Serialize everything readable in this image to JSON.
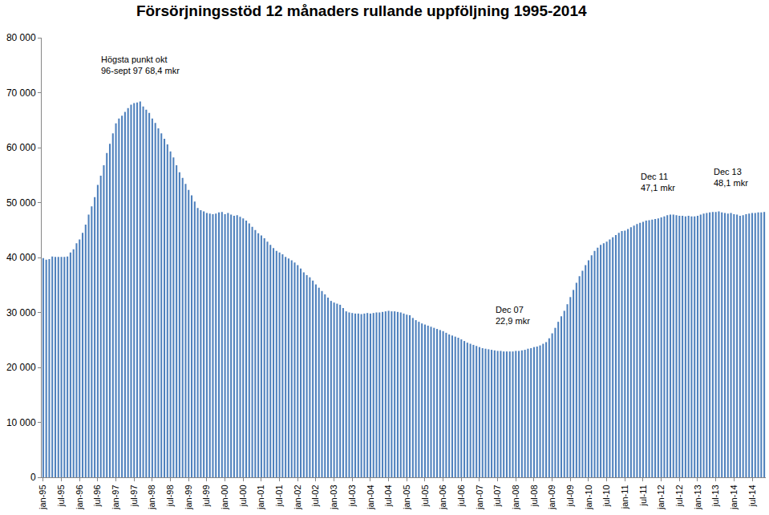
{
  "chart_data": {
    "type": "bar",
    "title": "Försörjningsstöd 12 månaders rullande uppföljning 1995-2014",
    "color": "#4f81bd",
    "grid": false,
    "categories": [
      "jan-95",
      null,
      null,
      null,
      null,
      null,
      "jul-95",
      null,
      null,
      null,
      null,
      null,
      "jan-96",
      null,
      null,
      null,
      null,
      null,
      "jul-96",
      null,
      null,
      null,
      null,
      null,
      "jan-97",
      null,
      null,
      null,
      null,
      null,
      "jul-97",
      null,
      null,
      null,
      null,
      null,
      "jan-98",
      null,
      null,
      null,
      null,
      null,
      "jul-98",
      null,
      null,
      null,
      null,
      null,
      "jan-99",
      null,
      null,
      null,
      null,
      null,
      "jul-99",
      null,
      null,
      null,
      null,
      null,
      "jan-00",
      null,
      null,
      null,
      null,
      null,
      "jul-00",
      null,
      null,
      null,
      null,
      null,
      "jan-01",
      null,
      null,
      null,
      null,
      null,
      "jul-01",
      null,
      null,
      null,
      null,
      null,
      "jan-02",
      null,
      null,
      null,
      null,
      null,
      "jul-02",
      null,
      null,
      null,
      null,
      null,
      "jan-03",
      null,
      null,
      null,
      null,
      null,
      "jul-03",
      null,
      null,
      null,
      null,
      null,
      "jan-04",
      null,
      null,
      null,
      null,
      null,
      "jul-04",
      null,
      null,
      null,
      null,
      null,
      "jan-05",
      null,
      null,
      null,
      null,
      null,
      "jul-05",
      null,
      null,
      null,
      null,
      null,
      "jan-06",
      null,
      null,
      null,
      null,
      null,
      "jul-06",
      null,
      null,
      null,
      null,
      null,
      "jan-07",
      null,
      null,
      null,
      null,
      null,
      "jul-07",
      null,
      null,
      null,
      null,
      null,
      "jan-08",
      null,
      null,
      null,
      null,
      null,
      "jul-08",
      null,
      null,
      null,
      null,
      null,
      "jan-09",
      null,
      null,
      null,
      null,
      null,
      "jul-09",
      null,
      null,
      null,
      null,
      null,
      "jan-10",
      null,
      null,
      null,
      null,
      null,
      "jul-10",
      null,
      null,
      null,
      null,
      null,
      "jan-11",
      null,
      null,
      null,
      null,
      null,
      "jul-11",
      null,
      null,
      null,
      null,
      null,
      "jan-12",
      null,
      null,
      null,
      null,
      null,
      "jul-12",
      null,
      null,
      null,
      null,
      null,
      "jan-13",
      null,
      null,
      null,
      null,
      null,
      "jul-13",
      null,
      null,
      null,
      null,
      null,
      "jan-14",
      null,
      null,
      null,
      null,
      null,
      "jul-14",
      null,
      null,
      null,
      null
    ],
    "values": [
      39900,
      39600,
      39700,
      40200,
      40100,
      40100,
      40100,
      40100,
      40200,
      40900,
      41500,
      42600,
      43300,
      44500,
      46000,
      47800,
      49300,
      51000,
      53200,
      54900,
      56800,
      59000,
      60700,
      62600,
      64400,
      65300,
      65800,
      66500,
      67200,
      67800,
      68100,
      68200,
      68400,
      67500,
      66900,
      66300,
      65300,
      64500,
      63500,
      62600,
      61600,
      60600,
      59300,
      58200,
      56800,
      55500,
      54500,
      53400,
      52300,
      51300,
      50200,
      49000,
      48600,
      48400,
      48100,
      48000,
      47900,
      48000,
      48200,
      48300,
      47900,
      48100,
      47800,
      47600,
      47700,
      47400,
      47100,
      46700,
      46200,
      45600,
      45000,
      44400,
      44000,
      43500,
      42900,
      42300,
      41700,
      41200,
      40900,
      40600,
      40100,
      39800,
      39500,
      39100,
      38600,
      38000,
      37300,
      36800,
      36400,
      35800,
      35100,
      34500,
      33900,
      33300,
      32700,
      32100,
      31800,
      31600,
      31400,
      30800,
      30200,
      30000,
      29900,
      29800,
      29800,
      29700,
      29800,
      29900,
      29800,
      29900,
      30000,
      30000,
      30100,
      30200,
      30300,
      30200,
      30200,
      30100,
      30000,
      29800,
      29600,
      29500,
      29000,
      28600,
      28300,
      28000,
      27800,
      27600,
      27400,
      27200,
      27000,
      26800,
      26600,
      26300,
      26000,
      25800,
      25600,
      25400,
      25100,
      24800,
      24500,
      24300,
      24100,
      23900,
      23700,
      23500,
      23400,
      23300,
      23200,
      23100,
      23000,
      23000,
      22900,
      22900,
      22900,
      22900,
      23000,
      23000,
      23100,
      23200,
      23400,
      23500,
      23700,
      23800,
      24000,
      24300,
      24600,
      25300,
      26200,
      27200,
      28300,
      29300,
      30300,
      31500,
      32800,
      34100,
      35400,
      36600,
      37600,
      38600,
      39500,
      40400,
      41200,
      41800,
      42300,
      42600,
      42900,
      43300,
      43700,
      44100,
      44500,
      44800,
      44900,
      45200,
      45500,
      45800,
      46100,
      46300,
      46500,
      46700,
      46800,
      46900,
      47000,
      47100,
      47300,
      47500,
      47700,
      47800,
      47800,
      47700,
      47600,
      47600,
      47500,
      47600,
      47500,
      47500,
      47600,
      47800,
      48000,
      48100,
      48200,
      48300,
      48300,
      48400,
      48200,
      48100,
      48000,
      48100,
      47900,
      47800,
      47600,
      47700,
      47900,
      48000,
      48100,
      48100,
      48200,
      48200,
      48300
    ],
    "ylim": [
      0,
      80000
    ],
    "yticks": [
      0,
      {
        "value": 10000,
        "label": "10 000"
      },
      {
        "value": 20000,
        "label": "20 000"
      },
      {
        "value": 30000,
        "label": "30 000"
      },
      {
        "value": 40000,
        "label": "40 000"
      },
      {
        "value": 50000,
        "label": "50 000"
      },
      {
        "value": 60000,
        "label": "60 000"
      },
      {
        "value": 70000,
        "label": "70 000"
      },
      {
        "value": 80000,
        "label": "80 000"
      }
    ],
    "annotations": [
      {
        "index": 32,
        "text": [
          "Högsta punkt okt",
          "96-sept 97 68,4 mkr"
        ]
      },
      {
        "index": 155,
        "text": [
          "Dec 07",
          "22,9 mkr"
        ]
      },
      {
        "index": 203,
        "text": [
          "Dec 11",
          "47,1 mkr"
        ]
      },
      {
        "index": 227,
        "text": [
          "Dec 13",
          "48,1 mkr"
        ]
      }
    ]
  }
}
